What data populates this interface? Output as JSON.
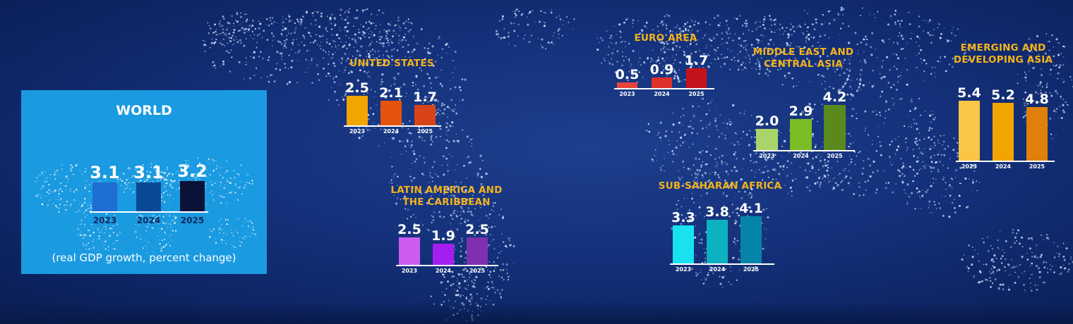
{
  "colors": {
    "background": "#14307a",
    "title": "#f5b31a",
    "world_panel": "#1a9ae0"
  },
  "chart_data": [
    {
      "type": "bar",
      "title": "WORLD",
      "categories": [
        "2023",
        "2024",
        "2025"
      ],
      "values": [
        3.1,
        3.1,
        3.2
      ],
      "colors": [
        "#1e6fd1",
        "#0a4a94",
        "#0a1238"
      ],
      "note": "(real GDP growth, percent change)"
    },
    {
      "type": "bar",
      "title": "UNITED STATES",
      "categories": [
        "2023",
        "2024",
        "2025"
      ],
      "values": [
        2.5,
        2.1,
        1.7
      ],
      "colors": [
        "#f0a500",
        "#e5540e",
        "#d8431a"
      ]
    },
    {
      "type": "bar",
      "title": "EURO AREA",
      "categories": [
        "2023",
        "2024",
        "2025"
      ],
      "values": [
        0.5,
        0.9,
        1.7
      ],
      "colors": [
        "#e8443c",
        "#dd3028",
        "#c5131b"
      ]
    },
    {
      "type": "bar",
      "title": "MIDDLE EAST AND CENTRAL ASIA",
      "title_lines": [
        "MIDDLE EAST AND",
        "CENTRAL ASIA"
      ],
      "categories": [
        "2023",
        "2024",
        "2025"
      ],
      "values": [
        2.0,
        2.9,
        4.2
      ],
      "colors": [
        "#a9d46a",
        "#79be25",
        "#5a8a1e"
      ]
    },
    {
      "type": "bar",
      "title": "EMERGING AND DEVELOPING ASIA",
      "title_lines": [
        "EMERGING AND",
        "DEVELOPING ASIA"
      ],
      "categories": [
        "2023",
        "2024",
        "2025"
      ],
      "values": [
        5.4,
        5.2,
        4.8
      ],
      "colors": [
        "#fbc646",
        "#f2a400",
        "#e0800a"
      ]
    },
    {
      "type": "bar",
      "title": "LATIN AMERICA AND THE CARIBBEAN",
      "title_lines": [
        "LATIN AMERICA AND",
        "THE CARIBBEAN"
      ],
      "categories": [
        "2023",
        "2024",
        "2025"
      ],
      "values": [
        2.5,
        1.9,
        2.5
      ],
      "colors": [
        "#cc5cf0",
        "#a41ef0",
        "#7f30b0"
      ]
    },
    {
      "type": "bar",
      "title": "SUB-SAHARAN AFRICA",
      "categories": [
        "2023",
        "2024",
        "2025"
      ],
      "values": [
        3.3,
        3.8,
        4.1
      ],
      "colors": [
        "#18e2f0",
        "#0bb2c0",
        "#0584aa"
      ]
    }
  ]
}
